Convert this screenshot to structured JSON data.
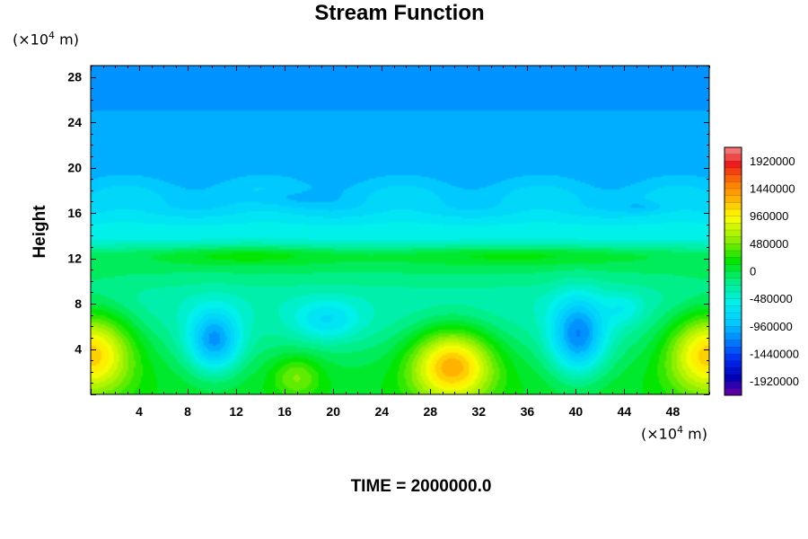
{
  "chart_data": {
    "type": "heatmap",
    "title": "Stream Function",
    "ylabel": "Height",
    "x_unit_prefix": "(×10",
    "x_unit_exp": "4",
    "x_unit_suffix": " m)",
    "y_unit_prefix": "(×10",
    "y_unit_exp": "4",
    "y_unit_suffix": " m)",
    "footer": "TIME = 2000000.0",
    "xlim": [
      0,
      51
    ],
    "ylim": [
      0,
      29
    ],
    "x_ticks": [
      4,
      8,
      12,
      16,
      20,
      24,
      28,
      32,
      36,
      40,
      44,
      48
    ],
    "y_ticks": [
      4,
      8,
      12,
      16,
      20,
      24,
      28
    ],
    "colorbar": {
      "range": [
        -2160000,
        2160000
      ],
      "levels": 36,
      "tick_values": [
        1920000,
        1440000,
        960000,
        480000,
        0,
        -480000,
        -960000,
        -1440000,
        -1920000
      ],
      "tick_labels": [
        "1920000",
        "1440000",
        "960000",
        "480000",
        "0",
        "-480000",
        "-960000",
        "-1440000",
        "-1920000"
      ]
    },
    "field": {
      "description_units": "stream function",
      "background": [
        {
          "y": 0,
          "value": 80000
        },
        {
          "y": 8,
          "value": -320000
        },
        {
          "y": 12,
          "value": -60000
        },
        {
          "y": 14,
          "value": -520000
        },
        {
          "y": 17,
          "value": -820000
        },
        {
          "y": 20,
          "value": -1020000
        },
        {
          "y": 29,
          "value": -1120000
        }
      ],
      "features": [
        {
          "x": 0.0,
          "y": 3.8,
          "sx": 3.5,
          "sy": 3.6,
          "amplitude": 1250000
        },
        {
          "x": 51.0,
          "y": 3.8,
          "sx": 3.5,
          "sy": 3.6,
          "amplitude": 1250000
        },
        {
          "x": 29.8,
          "y": 2.6,
          "sx": 3.4,
          "sy": 3.2,
          "amplitude": 1300000
        },
        {
          "x": 17.0,
          "y": 1.6,
          "sx": 2.0,
          "sy": 1.8,
          "amplitude": 450000
        },
        {
          "x": 10.2,
          "y": 4.6,
          "sx": 2.2,
          "sy": 2.8,
          "amplitude": -950000
        },
        {
          "x": 40.2,
          "y": 5.0,
          "sx": 2.3,
          "sy": 3.4,
          "amplitude": -1000000
        },
        {
          "x": 19.5,
          "y": 6.5,
          "sx": 2.8,
          "sy": 1.8,
          "amplitude": -450000
        },
        {
          "x": 44.0,
          "y": 7.5,
          "sx": 1.5,
          "sy": 1.4,
          "amplitude": -250000
        },
        {
          "x": 13.0,
          "y": 12.3,
          "sx": 7.0,
          "sy": 0.9,
          "amplitude": 250000
        },
        {
          "x": 35.0,
          "y": 12.3,
          "sx": 10.0,
          "sy": 0.9,
          "amplitude": 220000
        },
        {
          "x": 16.0,
          "y": 17.3,
          "sx": 4.0,
          "sy": 0.7,
          "amplitude": -180000
        },
        {
          "x": 45.5,
          "y": 16.5,
          "sx": 1.8,
          "sy": 0.5,
          "amplitude": -160000
        }
      ]
    }
  }
}
